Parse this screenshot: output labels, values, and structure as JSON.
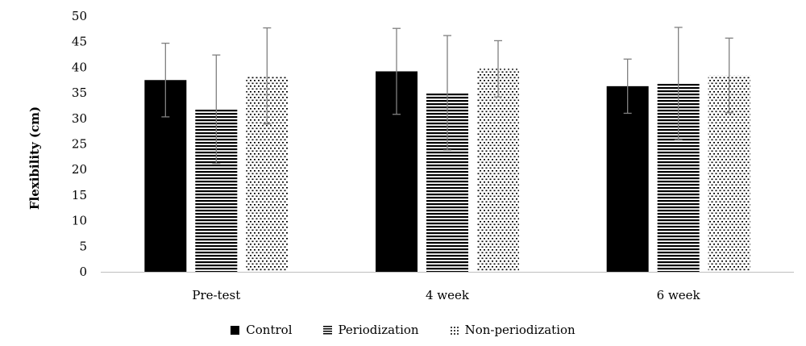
{
  "chart_data": {
    "type": "bar",
    "categories": [
      "Pre-test",
      "4 week",
      "6 week"
    ],
    "series": [
      {
        "name": "Control",
        "values": [
          37.5,
          39.2,
          36.3
        ],
        "error": [
          7.2,
          8.4,
          5.3
        ]
      },
      {
        "name": "Periodization",
        "values": [
          31.8,
          35.0,
          36.8
        ],
        "error": [
          10.6,
          11.2,
          11.0
        ]
      },
      {
        "name": "Non-periodization",
        "values": [
          38.3,
          39.7,
          38.4
        ],
        "error": [
          9.4,
          5.5,
          7.3
        ]
      }
    ],
    "xlabel": "",
    "ylabel": "Flexibility (cm)",
    "ylim": [
      0,
      50
    ],
    "yticks": [
      0,
      5,
      10,
      15,
      20,
      25,
      30,
      35,
      40,
      45,
      50
    ],
    "grid": false,
    "legend_position": "bottom",
    "colors": {
      "control": "#000000",
      "periodization": "#000000",
      "non_periodization": "#000000",
      "error_bar": "#808080"
    }
  }
}
